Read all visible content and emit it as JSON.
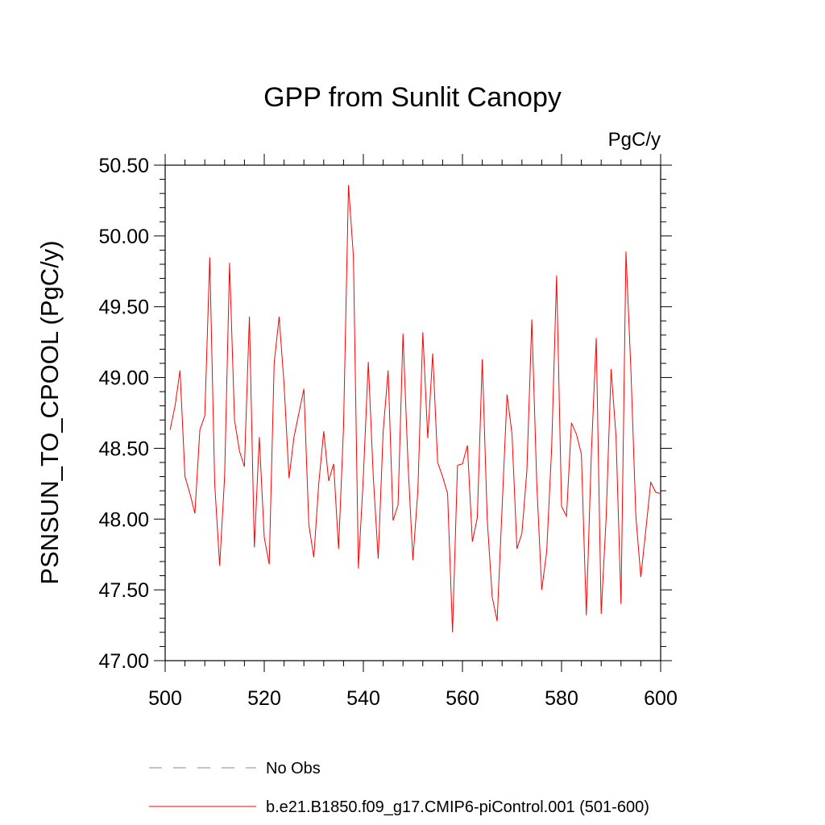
{
  "chart_data": {
    "type": "line",
    "title": "GPP from Sunlit Canopy",
    "units": "PgC/y",
    "ylabel": "PSNSUN_TO_CPOOL  (PgC/y)",
    "xlabel": "",
    "xlim": [
      500,
      600
    ],
    "ylim": [
      47.0,
      50.5
    ],
    "x_ticks": [
      500,
      520,
      540,
      560,
      580,
      600
    ],
    "y_ticks": [
      "47.00",
      "47.50",
      "48.00",
      "48.50",
      "49.00",
      "49.50",
      "50.00",
      "50.50"
    ],
    "grid": false,
    "legend_position": "bottom",
    "series": [
      {
        "name": "b.e21.B1850.f09_g17.CMIP6-piControl.001 (501-600)",
        "color": "#ff0000",
        "style": "solid",
        "x_start": 501,
        "values": [
          48.63,
          48.8,
          49.05,
          48.3,
          48.18,
          48.04,
          48.63,
          48.73,
          49.85,
          48.25,
          47.67,
          48.3,
          49.81,
          48.7,
          48.48,
          48.37,
          49.43,
          47.8,
          48.58,
          47.87,
          47.68,
          49.1,
          49.43,
          48.95,
          48.29,
          48.58,
          48.75,
          48.92,
          47.96,
          47.73,
          48.25,
          48.62,
          48.27,
          48.39,
          47.79,
          48.65,
          50.36,
          49.85,
          47.65,
          48.3,
          49.11,
          48.3,
          47.72,
          48.62,
          49.05,
          47.99,
          48.1,
          49.31,
          48.4,
          47.71,
          48.2,
          49.32,
          48.57,
          49.17,
          48.4,
          48.3,
          48.18,
          47.2,
          48.38,
          48.39,
          48.52,
          47.84,
          48.01,
          49.13,
          48.0,
          47.45,
          47.28,
          48.08,
          48.88,
          48.6,
          47.79,
          47.9,
          48.34,
          49.41,
          48.25,
          47.5,
          47.77,
          48.5,
          49.72,
          48.09,
          48.02,
          48.68,
          48.6,
          48.46,
          47.32,
          48.45,
          49.28,
          47.33,
          48.01,
          49.06,
          48.58,
          47.4,
          49.89,
          49.05,
          48.02,
          47.59,
          47.92,
          48.26,
          48.19,
          48.18
        ]
      },
      {
        "name": "No Obs",
        "color": "#8080c0",
        "style": "dashed",
        "values": []
      }
    ]
  }
}
